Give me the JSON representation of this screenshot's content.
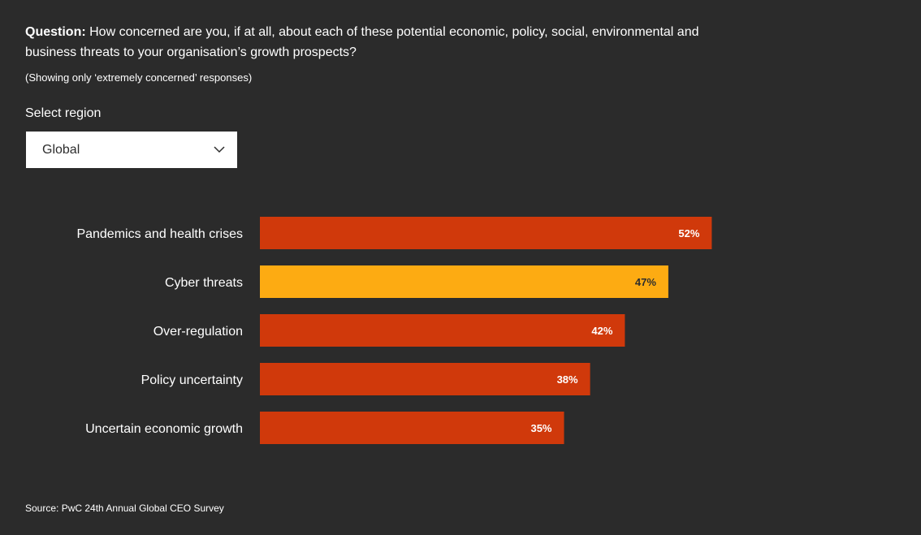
{
  "header": {
    "question_label": "Question:",
    "question_text": "How concerned are you, if at all, about each of these potential economic, policy, social, environmental and business threats to your organisation’s growth prospects?",
    "note": "(Showing only ‘extremely concerned’ responses)"
  },
  "region_select": {
    "label": "Select region",
    "selected": "Global",
    "icon": "chevron-down-icon"
  },
  "colors": {
    "background": "#2b2b2b",
    "bar_primary": "#d0390b",
    "bar_highlight": "#fdab12",
    "text": "#ffffff",
    "text_dark": "#2d2d2d"
  },
  "chart_data": {
    "type": "bar",
    "orientation": "horizontal",
    "categories": [
      "Pandemics and health crises",
      "Cyber threats",
      "Over-regulation",
      "Policy uncertainty",
      "Uncertain economic growth"
    ],
    "values": [
      52,
      47,
      42,
      38,
      35
    ],
    "value_labels": [
      "52%",
      "47%",
      "42%",
      "38%",
      "35%"
    ],
    "highlight_index": 1,
    "unit": "%",
    "xlim": [
      0,
      100
    ],
    "grid": false,
    "title": "",
    "xlabel": "",
    "ylabel": ""
  },
  "footer": {
    "source": "Source: PwC 24th Annual Global CEO Survey"
  }
}
